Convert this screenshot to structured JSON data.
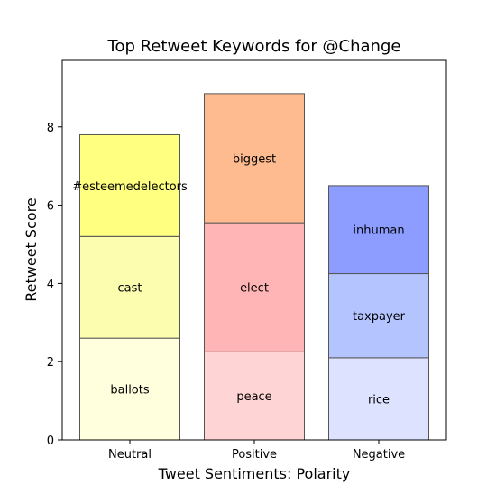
{
  "chart_data": {
    "type": "bar",
    "stacked": true,
    "title": "Top Retweet Keywords for @Change",
    "xlabel": "Tweet Sentiments: Polarity",
    "ylabel": "Retweet Score",
    "categories": [
      "Neutral",
      "Positive",
      "Negative"
    ],
    "ylim": [
      0,
      9.7
    ],
    "yticks": [
      0,
      2,
      4,
      6,
      8
    ],
    "grid": false,
    "stacks": [
      {
        "category": "Neutral",
        "segments": [
          {
            "keyword": "ballots",
            "value": 2.6,
            "color": "#ffffdd"
          },
          {
            "keyword": "cast",
            "value": 2.6,
            "color": "#fdfdb0"
          },
          {
            "keyword": "#esteemedelectors",
            "value": 2.6,
            "color": "#ffff80"
          }
        ]
      },
      {
        "category": "Positive",
        "segments": [
          {
            "keyword": "peace",
            "value": 2.25,
            "color": "#ffd4d4"
          },
          {
            "keyword": "elect",
            "value": 3.3,
            "color": "#ffb5b5"
          },
          {
            "keyword": "biggest",
            "value": 3.3,
            "color": "#ffbb90"
          }
        ]
      },
      {
        "category": "Negative",
        "segments": [
          {
            "keyword": "rice",
            "value": 2.1,
            "color": "#dde3ff"
          },
          {
            "keyword": "taxpayer",
            "value": 2.15,
            "color": "#b3c4ff"
          },
          {
            "keyword": "inhuman",
            "value": 2.25,
            "color": "#8c9cff"
          }
        ]
      }
    ]
  }
}
